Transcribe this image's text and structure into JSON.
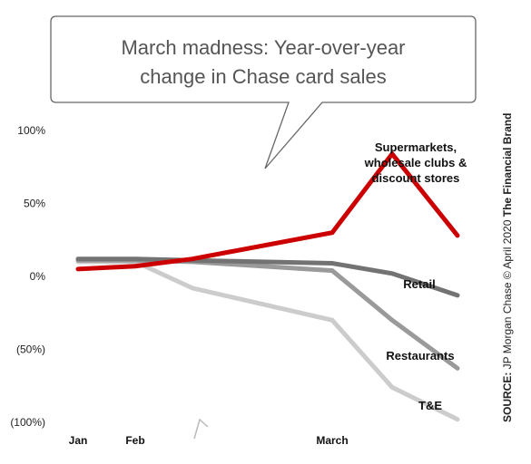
{
  "chart_data": {
    "type": "line",
    "title_lines": [
      "March madness: Year-over-year",
      "change in Chase card sales"
    ],
    "source_prefix": "SOURCE:",
    "source_body": " JP Morgan Chase © April 2020 ",
    "source_brand": "The Financial Brand",
    "y_ticks": [
      {
        "value": 100,
        "label": "100%"
      },
      {
        "value": 50,
        "label": "50%"
      },
      {
        "value": 0,
        "label": "0%"
      },
      {
        "value": -50,
        "label": "(50%)"
      },
      {
        "value": -100,
        "label": "(100%)"
      }
    ],
    "ylim": [
      -100,
      100
    ],
    "x_labels": [
      {
        "x": 0,
        "label": "Jan"
      },
      {
        "x": 1,
        "label": "Feb"
      },
      {
        "x": 5,
        "label": "March"
      }
    ],
    "x": [
      0,
      1,
      2,
      4,
      5,
      6,
      7
    ],
    "series": [
      {
        "name_lines": [
          "Supermarkets,",
          "wholesale clubs &",
          "discount stores"
        ],
        "color": "#cc0000",
        "width": 5,
        "values": [
          5,
          7,
          12,
          30,
          84,
          28,
          12
        ]
      },
      {
        "name_lines": [
          "Retail"
        ],
        "color": "#737373",
        "width": 5,
        "values": [
          12,
          12,
          11,
          9,
          2,
          -13,
          -21
        ]
      },
      {
        "name_lines": [
          "Restaurants"
        ],
        "color": "#9a9a9a",
        "width": 5,
        "values": [
          11,
          11,
          10,
          4,
          -30,
          -63,
          -63
        ]
      },
      {
        "name_lines": [
          "T&E"
        ],
        "color": "#cccccc",
        "width": 5,
        "values": [
          10,
          10,
          -8,
          -30,
          -76,
          -98,
          -98
        ]
      }
    ]
  }
}
